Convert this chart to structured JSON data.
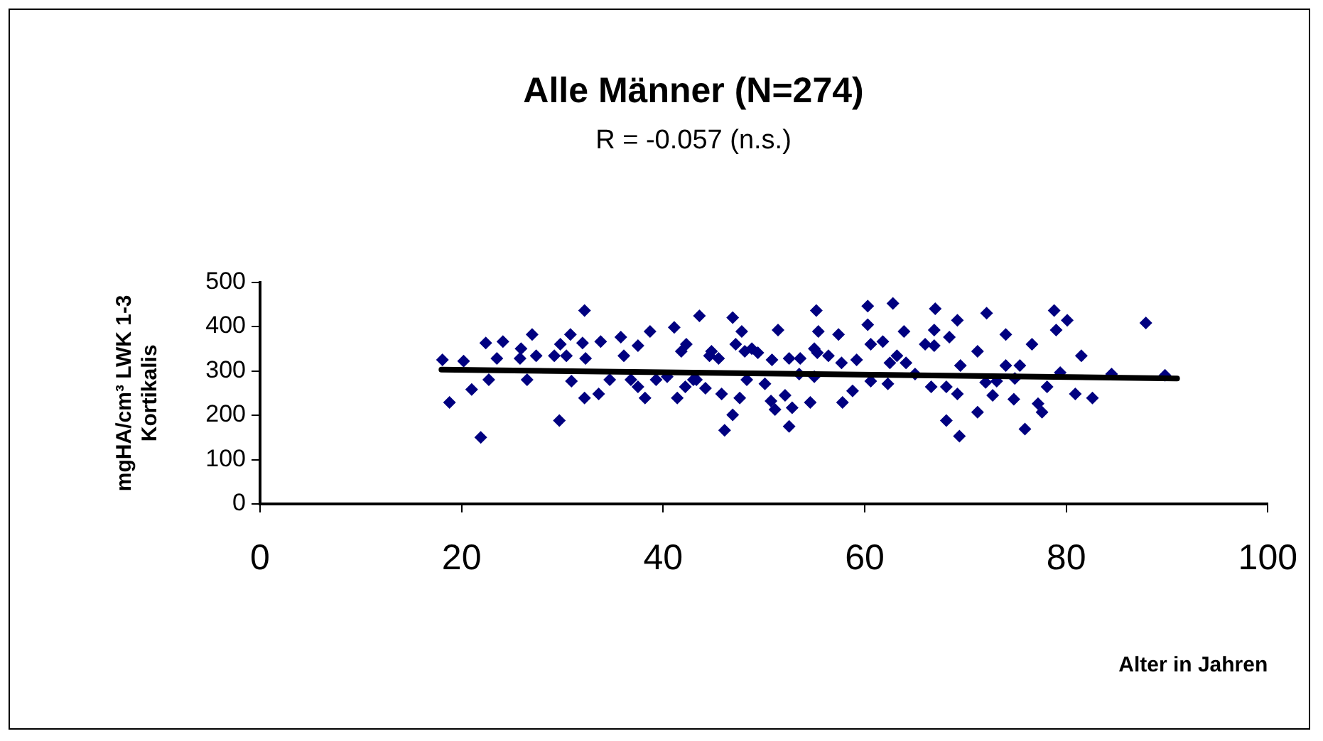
{
  "chart_data": {
    "type": "scatter",
    "title": "Alle Männer (N=274)",
    "subtitle": "R = -0.057 (n.s.)",
    "xlabel": "Alter in Jahren",
    "ylabel": "mgHA/cm³ LWK 1-3\nKortikalis",
    "xlim": [
      0,
      100
    ],
    "xticks": [
      0,
      20,
      40,
      60,
      80,
      100
    ],
    "ylim": [
      0,
      500
    ],
    "yticks": [
      0,
      100,
      200,
      300,
      400,
      500
    ],
    "grid": false,
    "legend": false,
    "series": [
      {
        "marker": "diamond",
        "color": "#000080",
        "x": [
          18.8,
          18.1,
          20.2,
          21.0,
          21.9,
          22.4,
          23.5,
          22.7,
          24.1,
          25.9,
          25.8,
          26.5,
          27.4,
          27.0,
          29.2,
          29.7,
          29.8,
          30.8,
          30.4,
          32.2,
          32.0,
          32.2,
          32.3,
          30.9,
          33.6,
          33.8,
          34.7,
          35.8,
          36.1,
          36.8,
          37.5,
          38.2,
          37.5,
          38.7,
          39.3,
          41.1,
          41.4,
          41.8,
          42.3,
          42.2,
          40.4,
          43.6,
          43.0,
          46.9,
          47.8,
          47.2,
          44.8,
          44.6,
          45.5,
          48.1,
          48.8,
          49.4,
          44.2,
          43.3,
          45.8,
          46.9,
          46.1,
          47.6,
          48.3,
          51.4,
          50.1,
          50.7,
          51.1,
          52.1,
          52.8,
          52.5,
          50.8,
          52.5,
          53.6,
          53.5,
          54.6,
          55.2,
          55.4,
          55.0,
          55.3,
          56.4,
          55.0,
          57.4,
          57.8,
          58.8,
          59.2,
          57.7,
          60.3,
          60.3,
          60.6,
          61.8,
          60.6,
          62.5,
          62.3,
          62.8,
          63.9,
          64.1,
          63.2,
          66.6,
          66.0,
          66.9,
          67.0,
          66.9,
          68.4,
          69.2,
          68.1,
          69.2,
          68.1,
          69.4,
          65.0,
          69.5,
          72.1,
          78.8,
          80.1,
          87.9,
          74.0,
          79.0,
          76.6,
          71.2,
          81.5,
          74.0,
          75.4,
          72.0,
          74.9,
          78.1,
          72.7,
          74.8,
          77.2,
          80.9,
          82.6,
          77.6,
          71.2,
          75.9,
          84.5,
          79.4,
          89.8,
          73.1
        ],
        "values": [
          229,
          325,
          322,
          258,
          150,
          363,
          328,
          280,
          366,
          350,
          328,
          280,
          334,
          382,
          334,
          188,
          360,
          382,
          334,
          436,
          363,
          239,
          328,
          277,
          248,
          366,
          280,
          376,
          334,
          280,
          357,
          239,
          264,
          389,
          280,
          398,
          239,
          344,
          360,
          264,
          287,
          424,
          280,
          420,
          389,
          360,
          344,
          334,
          328,
          344,
          350,
          341,
          261,
          280,
          248,
          201,
          166,
          239,
          280,
          392,
          271,
          232,
          213,
          245,
          217,
          175,
          325,
          328,
          328,
          293,
          229,
          436,
          389,
          350,
          341,
          334,
          287,
          382,
          229,
          255,
          325,
          318,
          446,
          404,
          277,
          366,
          360,
          318,
          271,
          452,
          389,
          318,
          334,
          264,
          360,
          357,
          440,
          392,
          376,
          414,
          264,
          248,
          188,
          153,
          293,
          312,
          430,
          436,
          414,
          408,
          382,
          392,
          360,
          344,
          334,
          312,
          312,
          274,
          283,
          264,
          245,
          236,
          226,
          248,
          239,
          207,
          207,
          169,
          293,
          296,
          290,
          277
        ]
      },
      {
        "type": "line",
        "marker": "none",
        "color": "#000000",
        "x": [
          18,
          91
        ],
        "values": [
          303,
          283
        ]
      }
    ]
  }
}
